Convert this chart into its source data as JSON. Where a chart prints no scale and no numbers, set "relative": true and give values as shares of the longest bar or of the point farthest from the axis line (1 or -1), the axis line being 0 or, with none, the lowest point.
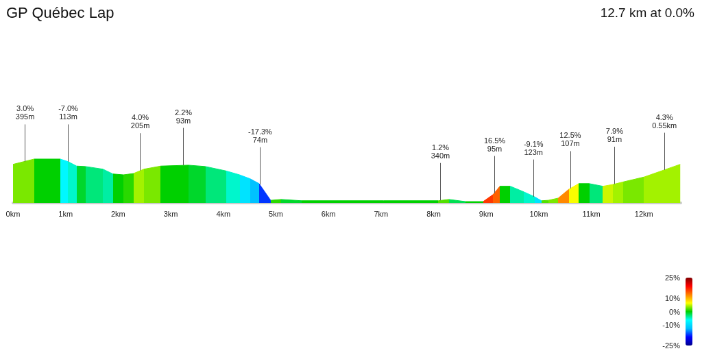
{
  "chart_data": {
    "type": "area",
    "title": "GP Québec Lap",
    "subtitle": "12.7 km at 0.0%",
    "relative": true,
    "x": [
      0,
      0.4,
      0.9,
      1.05,
      1.21,
      1.38,
      1.71,
      1.9,
      2.1,
      2.29,
      2.49,
      2.81,
      3.34,
      3.66,
      4.05,
      4.31,
      4.51,
      4.68,
      4.9,
      5.1,
      5.49,
      7.05,
      8.09,
      8.29,
      8.61,
      8.94,
      9.13,
      9.26,
      9.46,
      9.72,
      9.92,
      10.05,
      10.18,
      10.37,
      10.57,
      10.76,
      10.96,
      11.22,
      11.41,
      11.61,
      12.0,
      12.69
    ],
    "values": [
      0.88,
      1,
      1,
      0.94,
      0.84,
      0.83,
      0.77,
      0.66,
      0.64,
      0.67,
      0.77,
      0.84,
      0.86,
      0.83,
      0.73,
      0.64,
      0.55,
      0.44,
      0.06,
      0.08,
      0.05,
      0.05,
      0.05,
      0.08,
      0.03,
      0.03,
      0.19,
      0.38,
      0.38,
      0.25,
      0.14,
      0.05,
      0.06,
      0.11,
      0.31,
      0.44,
      0.44,
      0.38,
      0.42,
      0.48,
      0.59,
      0.88
    ],
    "colors": [
      "#7ae800",
      "#00d000",
      "#00f8ff",
      "#00f6cc",
      "#00d72b",
      "#00e77a",
      "#00eea3",
      "#00d000",
      "#29d900",
      "#a3f200",
      "#7ae800",
      "#00d000",
      "#00d72b",
      "#00e77a",
      "#00f6cc",
      "#00e3ff",
      "#00c2ff",
      "#0035ff",
      "#29d900",
      "#00d72b",
      "#00d000",
      "#00d000",
      "#52e000",
      "#00df52",
      "#00d000",
      "#ff3800",
      "#ff6100",
      "#00d000",
      "#00eea3",
      "#00f6cc",
      "#00e3ff",
      "#52e000",
      "#7ae800",
      "#ff8900",
      "#fafd00",
      "#00d000",
      "#00e77a",
      "#ccf600",
      "#a3f200",
      "#7ae800",
      "#a3f200",
      "#a3f200"
    ],
    "clim": [
      -25,
      25
    ],
    "cticks": [
      {
        "value": 25,
        "label": "25%"
      },
      {
        "value": 10,
        "label": "10%"
      },
      {
        "value": 0,
        "label": "0%"
      },
      {
        "value": -10,
        "label": "-10%"
      },
      {
        "value": -25,
        "label": "-25%"
      }
    ],
    "xlim": [
      0,
      12.7
    ],
    "xticks": [
      {
        "value": 0,
        "label": "0km"
      },
      {
        "value": 1,
        "label": "1km"
      },
      {
        "value": 2,
        "label": "2km"
      },
      {
        "value": 3,
        "label": "3km"
      },
      {
        "value": 4,
        "label": "4km"
      },
      {
        "value": 5,
        "label": "5km"
      },
      {
        "value": 6,
        "label": "6km"
      },
      {
        "value": 7,
        "label": "7km"
      },
      {
        "value": 8,
        "label": "8km"
      },
      {
        "value": 9,
        "label": "9km"
      },
      {
        "value": 10,
        "label": "10km"
      },
      {
        "value": 11,
        "label": "11km"
      },
      {
        "value": 12,
        "label": "12km"
      }
    ],
    "grid": false,
    "annotations": [
      {
        "text": "3.0%\n395m",
        "x": 0.23,
        "y": 0.94
      },
      {
        "text": "-7.0%\n113m",
        "x": 1.05,
        "y": 0.94
      },
      {
        "text": "4.0%\n205m",
        "x": 2.42,
        "y": 0.74
      },
      {
        "text": "2.2%\n93m",
        "x": 3.24,
        "y": 0.86
      },
      {
        "text": "-17.3%\n74m",
        "x": 4.7,
        "y": 0.42
      },
      {
        "text": "1.2%\n340m",
        "x": 8.13,
        "y": 0.06
      },
      {
        "text": "16.5%\n95m",
        "x": 9.16,
        "y": 0.22
      },
      {
        "text": "-9.1%\n123m",
        "x": 9.9,
        "y": 0.14
      },
      {
        "text": "12.5%\n107m",
        "x": 10.6,
        "y": 0.33
      },
      {
        "text": "7.9%\n91m",
        "x": 11.44,
        "y": 0.43
      },
      {
        "text": "4.3%\n0.55km",
        "x": 12.39,
        "y": 0.75
      }
    ]
  }
}
